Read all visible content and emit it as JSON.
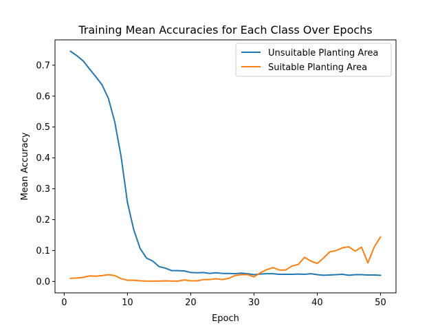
{
  "chart_data": {
    "type": "line",
    "title": "Training Mean Accuracies for Each Class Over Epochs",
    "xlabel": "Epoch",
    "ylabel": "Mean Accuracy",
    "xlim": [
      -1.45,
      52.45
    ],
    "ylim": [
      -0.037,
      0.782
    ],
    "xticks": [
      0,
      10,
      20,
      30,
      40,
      50
    ],
    "yticks": [
      0.0,
      0.1,
      0.2,
      0.3,
      0.4,
      0.5,
      0.6,
      0.7
    ],
    "ytick_labels": [
      "0.0",
      "0.1",
      "0.2",
      "0.3",
      "0.4",
      "0.5",
      "0.6",
      "0.7"
    ],
    "grid": false,
    "legend_position": "top-right",
    "x": [
      1,
      2,
      3,
      4,
      5,
      6,
      7,
      8,
      9,
      10,
      11,
      12,
      13,
      14,
      15,
      16,
      17,
      18,
      19,
      20,
      21,
      22,
      23,
      24,
      25,
      26,
      27,
      28,
      29,
      30,
      31,
      32,
      33,
      34,
      35,
      36,
      37,
      38,
      39,
      40,
      41,
      42,
      43,
      44,
      45,
      46,
      47,
      48,
      49,
      50
    ],
    "series": [
      {
        "name": "Unsuitable Planting Area",
        "color": "#1f77b4",
        "values": [
          0.745,
          0.731,
          0.714,
          0.688,
          0.663,
          0.636,
          0.592,
          0.516,
          0.404,
          0.256,
          0.167,
          0.107,
          0.076,
          0.066,
          0.048,
          0.043,
          0.035,
          0.035,
          0.034,
          0.029,
          0.028,
          0.029,
          0.026,
          0.028,
          0.026,
          0.026,
          0.025,
          0.027,
          0.025,
          0.022,
          0.024,
          0.025,
          0.025,
          0.023,
          0.023,
          0.023,
          0.024,
          0.023,
          0.025,
          0.022,
          0.02,
          0.021,
          0.022,
          0.023,
          0.02,
          0.022,
          0.022,
          0.021,
          0.021,
          0.02
        ]
      },
      {
        "name": "Suitable Planting Area",
        "color": "#ff7f0e",
        "values": [
          0.01,
          0.011,
          0.013,
          0.018,
          0.017,
          0.019,
          0.022,
          0.019,
          0.009,
          0.004,
          0.004,
          0.002,
          0.001,
          0.001,
          0.001,
          0.002,
          0.001,
          0.001,
          0.005,
          0.002,
          0.002,
          0.006,
          0.006,
          0.009,
          0.006,
          0.01,
          0.019,
          0.022,
          0.022,
          0.015,
          0.028,
          0.038,
          0.045,
          0.037,
          0.037,
          0.05,
          0.055,
          0.078,
          0.066,
          0.058,
          0.076,
          0.096,
          0.1,
          0.109,
          0.112,
          0.098,
          0.111,
          0.06,
          0.111,
          0.144
        ]
      }
    ]
  }
}
